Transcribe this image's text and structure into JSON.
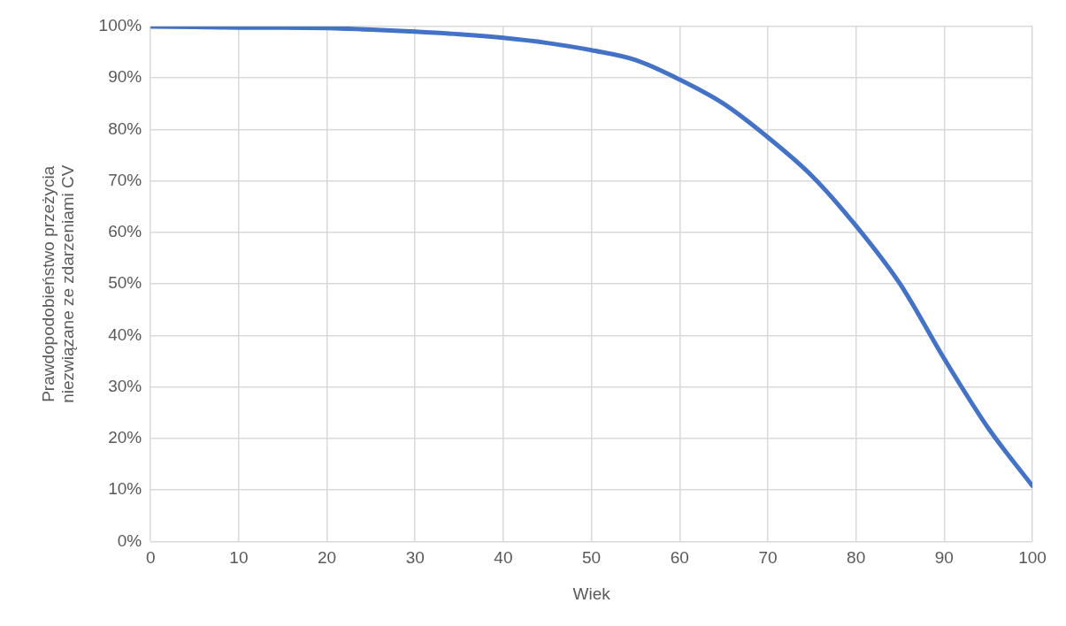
{
  "chart_data": {
    "type": "line",
    "xlabel": "Wiek",
    "ylabel": "Prawdopodobieństwo przeżycia\nniezwiązane ze zdarzeniami CV",
    "x": [
      0,
      5,
      10,
      15,
      20,
      25,
      30,
      35,
      40,
      45,
      50,
      55,
      60,
      65,
      70,
      75,
      80,
      85,
      90,
      95,
      100
    ],
    "series": [
      {
        "color": "#4472c4",
        "values": [
          100,
          99.9,
          99.8,
          99.8,
          99.7,
          99.4,
          99,
          98.5,
          97.8,
          96.8,
          95.4,
          93.5,
          89.7,
          85,
          78.5,
          71,
          61.3,
          50,
          35.5,
          22,
          10.8
        ]
      }
    ],
    "xlim": [
      0,
      100
    ],
    "xticks": [
      0,
      10,
      20,
      30,
      40,
      50,
      60,
      70,
      80,
      90,
      100
    ],
    "ylim": [
      0,
      100
    ],
    "yticks": [
      {
        "value": 0,
        "label": "0%"
      },
      {
        "value": 10,
        "label": "10%"
      },
      {
        "value": 20,
        "label": "20%"
      },
      {
        "value": 30,
        "label": "30%"
      },
      {
        "value": 40,
        "label": "40%"
      },
      {
        "value": 50,
        "label": "50%"
      },
      {
        "value": 60,
        "label": "60%"
      },
      {
        "value": 70,
        "label": "70%"
      },
      {
        "value": 80,
        "label": "80%"
      },
      {
        "value": 90,
        "label": "90%"
      },
      {
        "value": 100,
        "label": "100%"
      }
    ],
    "grid": true,
    "legend": false,
    "marker": "none",
    "line_style": "solid"
  }
}
